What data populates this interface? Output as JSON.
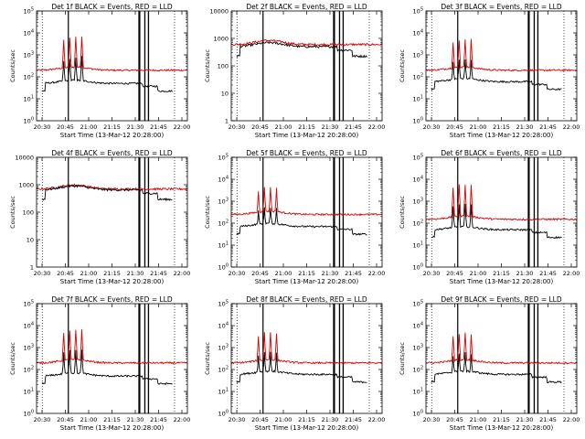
{
  "colors": {
    "events": "#000000",
    "lld": "#dd0000",
    "background": "#ffffff"
  },
  "common": {
    "x_tick_labels": [
      "20:30",
      "20:45",
      "21:00",
      "21:15",
      "21:30",
      "21:45",
      "22:00"
    ],
    "xlabel": "Start Time (13-Mar-12 20:28:00)",
    "ylabel": "Counts/sec",
    "title_suffix": "BLACK = Events, RED = LLD",
    "shaded_intervals_minutes": [
      [
        20.7,
        21.3
      ],
      [
        67.5,
        68.8
      ],
      [
        71.4,
        72.2
      ],
      [
        73.8,
        74.6
      ]
    ],
    "dotted_lines_minutes": [
      3.8,
      91.5
    ]
  },
  "chart_data": [
    {
      "detector": "Det 1f",
      "title": "Det 1f BLACK = Events, RED = LLD",
      "type": "line",
      "xlim_minutes": [
        0,
        100
      ],
      "ylim": [
        1,
        100000
      ],
      "y_decades": [
        "10^0",
        "10^1",
        "10^2",
        "10^3",
        "10^4",
        "10^5"
      ],
      "lld_level": 200,
      "events_level": 50,
      "flare_peaks": [
        4500,
        6000,
        6500,
        7000
      ]
    },
    {
      "detector": "Det 2f",
      "title": "Det 2f BLACK = Events, RED = LLD",
      "type": "line",
      "xlim_minutes": [
        0,
        100
      ],
      "ylim": [
        1,
        10000
      ],
      "y_tick_labels": [
        "1",
        "10",
        "100",
        "1000",
        "10000"
      ],
      "lld_level": 600,
      "events_level": 500,
      "flare_peaks": []
    },
    {
      "detector": "Det 3f",
      "title": "Det 3f BLACK = Events, RED = LLD",
      "type": "line",
      "xlim_minutes": [
        0,
        100
      ],
      "ylim": [
        1,
        100000
      ],
      "y_decades": [
        "10^0",
        "10^1",
        "10^2",
        "10^3",
        "10^4",
        "10^5"
      ],
      "lld_level": 200,
      "events_level": 60,
      "flare_peaks": [
        4000,
        5000,
        5500,
        5000
      ]
    },
    {
      "detector": "Det 4f",
      "title": "Det 4f BLACK = Events, RED = LLD",
      "type": "line",
      "xlim_minutes": [
        0,
        100
      ],
      "ylim": [
        1,
        10000
      ],
      "y_tick_labels": [
        "1",
        "10",
        "100",
        "1000",
        "10000"
      ],
      "lld_level": 700,
      "events_level": 650,
      "flare_peaks": []
    },
    {
      "detector": "Det 5f",
      "title": "Det 5f BLACK = Events, RED = LLD",
      "type": "line",
      "xlim_minutes": [
        0,
        100
      ],
      "ylim": [
        1,
        100000
      ],
      "y_decades": [
        "10^0",
        "10^1",
        "10^2",
        "10^3",
        "10^4",
        "10^5"
      ],
      "lld_level": 250,
      "events_level": 70,
      "flare_peaks": [
        3000,
        4500,
        4500,
        4000
      ]
    },
    {
      "detector": "Det 6f",
      "title": "Det 6f BLACK = Events, RED = LLD",
      "type": "line",
      "xlim_minutes": [
        0,
        100
      ],
      "ylim": [
        1,
        100000
      ],
      "y_decades": [
        "10^0",
        "10^1",
        "10^2",
        "10^3",
        "10^4",
        "10^5"
      ],
      "lld_level": 150,
      "events_level": 50,
      "flare_peaks": [
        4500,
        6000,
        6000,
        5500
      ]
    },
    {
      "detector": "Det 7f",
      "title": "Det 7f BLACK = Events, RED = LLD",
      "type": "line",
      "xlim_minutes": [
        0,
        100
      ],
      "ylim": [
        1,
        100000
      ],
      "y_decades": [
        "10^0",
        "10^1",
        "10^2",
        "10^3",
        "10^4",
        "10^5"
      ],
      "lld_level": 200,
      "events_level": 50,
      "flare_peaks": [
        5000,
        6000,
        6500,
        6500
      ]
    },
    {
      "detector": "Det 8f",
      "title": "Det 8f BLACK = Events, RED = LLD",
      "type": "line",
      "xlim_minutes": [
        0,
        100
      ],
      "ylim": [
        1,
        100000
      ],
      "y_decades": [
        "10^0",
        "10^1",
        "10^2",
        "10^3",
        "10^4",
        "10^5"
      ],
      "lld_level": 200,
      "events_level": 60,
      "flare_peaks": [
        3500,
        5000,
        5000,
        4500
      ]
    },
    {
      "detector": "Det 9f",
      "title": "Det 9f BLACK = Events, RED = LLD",
      "type": "line",
      "xlim_minutes": [
        0,
        100
      ],
      "ylim": [
        1,
        100000
      ],
      "y_decades": [
        "10^0",
        "10^1",
        "10^2",
        "10^3",
        "10^4",
        "10^5"
      ],
      "lld_level": 200,
      "events_level": 60,
      "flare_peaks": [
        3500,
        4500,
        5000,
        4000
      ]
    }
  ]
}
